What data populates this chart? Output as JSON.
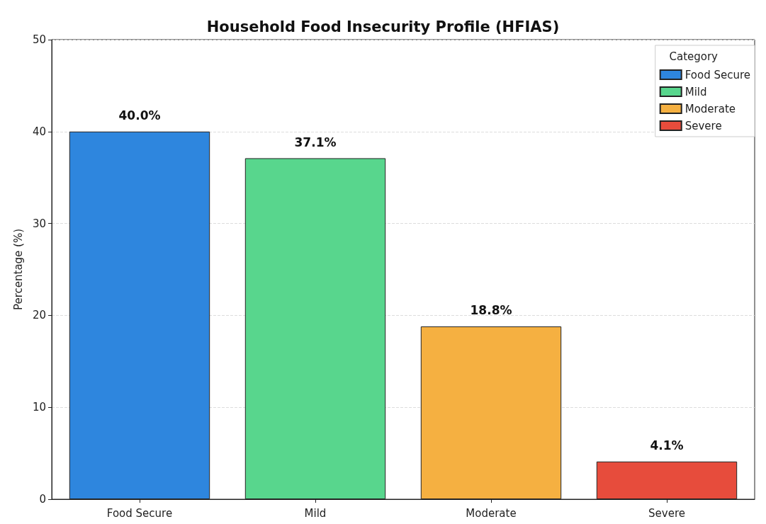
{
  "chart_data": {
    "type": "bar",
    "title": "Household Food Insecurity Profile (HFIAS)",
    "ylabel": "Percentage (%)",
    "legend_title": "Category",
    "categories": [
      "Food Secure",
      "Mild",
      "Moderate",
      "Severe"
    ],
    "series": [
      {
        "name": "Food Secure",
        "color": "#2e86de",
        "values": [
          40.0,
          null,
          null,
          null
        ],
        "value_labels": [
          "40.0%",
          null,
          null,
          null
        ]
      },
      {
        "name": "Mild",
        "color": "#58d68d",
        "values": [
          null,
          37.1,
          null,
          null
        ],
        "value_labels": [
          null,
          "37.1%",
          null,
          null
        ]
      },
      {
        "name": "Moderate",
        "color": "#f5b041",
        "values": [
          null,
          null,
          18.8,
          null
        ],
        "value_labels": [
          null,
          null,
          "18.8%",
          null
        ]
      },
      {
        "name": "Severe",
        "color": "#e74c3c",
        "values": [
          null,
          null,
          null,
          4.1
        ],
        "value_labels": [
          null,
          null,
          null,
          "4.1%"
        ]
      }
    ],
    "ylim": [
      0,
      50
    ],
    "yticks": [
      0,
      10,
      20,
      30,
      40,
      50
    ],
    "grid": "y",
    "legend": "top right"
  }
}
